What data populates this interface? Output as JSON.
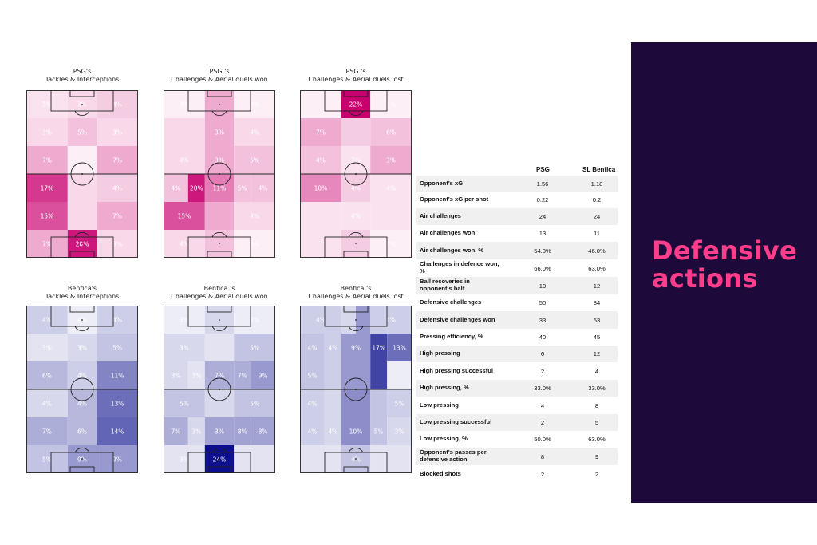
{
  "pitches": [
    {
      "id": "psg-tackles",
      "title": [
        "PSG's",
        "Tackles & Interceptions"
      ],
      "palette": "pink",
      "cells": [
        [
          2,
          3,
          4
        ],
        [
          3,
          5,
          3
        ],
        [
          7,
          1,
          7
        ],
        [
          17,
          3,
          4
        ],
        [
          15,
          3,
          7
        ],
        [
          7,
          20,
          3
        ]
      ],
      "labels": [
        [
          "5%",
          "3%",
          "4%"
        ],
        [
          "3%",
          "5%",
          "3%"
        ],
        [
          "7%",
          "",
          "7%"
        ],
        [
          "17%",
          "",
          "4%"
        ],
        [
          "15%",
          "",
          "7%"
        ],
        [
          "7%",
          "20%",
          "3%"
        ]
      ],
      "extra": [
        {
          "text": "3%",
          "col": 1.5,
          "row": 1,
          "dark": false
        }
      ]
    },
    {
      "id": "psg-aerial-won",
      "title": [
        "PSG 's",
        "Challenges & Aerial duels won"
      ],
      "palette": "pink",
      "cells": [
        [
          1,
          7,
          1
        ],
        [
          3,
          7,
          3
        ],
        [
          3,
          7,
          5
        ],
        [
          5,
          20,
          11,
          5,
          5
        ],
        [
          15,
          7,
          3
        ],
        [
          3,
          5,
          1
        ]
      ],
      "split": [
        null,
        null,
        null,
        true,
        null,
        null
      ],
      "labels": [
        [
          "3%",
          "",
          "3%"
        ],
        [
          "",
          "3%",
          "4%"
        ],
        [
          "4%",
          "3%",
          "5%"
        ],
        [
          "4%",
          "20%",
          "11%",
          "5%",
          "4%"
        ],
        [
          "15%",
          "",
          "4%"
        ],
        [
          "4%",
          "",
          "3%"
        ]
      ]
    },
    {
      "id": "psg-aerial-lost",
      "title": [
        "PSG 's",
        "Challenges & Aerial duels lost"
      ],
      "palette": "pink",
      "cells": [
        [
          1,
          22,
          1
        ],
        [
          7,
          4,
          5
        ],
        [
          5,
          2,
          7
        ],
        [
          10,
          4,
          2
        ],
        [
          2,
          2,
          2
        ],
        [
          2,
          4,
          1
        ]
      ],
      "labels": [
        [
          "",
          "22%",
          "1%"
        ],
        [
          "7%",
          "",
          "6%"
        ],
        [
          "4%",
          "7%",
          "3%"
        ],
        [
          "10%",
          "4%",
          "4%"
        ],
        [
          "",
          "4%",
          ""
        ],
        [
          "",
          "",
          "3%"
        ]
      ],
      "extra": [
        {
          "text": "7%",
          "col": 0.75,
          "row": 1.4
        },
        {
          "text": "5%",
          "col": 1.5,
          "row": 1.4
        }
      ]
    },
    {
      "id": "benfica-tackles",
      "title": [
        "Benfica's",
        "Tackles & Interceptions"
      ],
      "palette": "blue",
      "cells": [
        [
          4,
          1,
          4
        ],
        [
          2,
          3,
          5
        ],
        [
          6,
          4,
          11
        ],
        [
          3,
          6,
          13
        ],
        [
          7,
          6,
          14
        ],
        [
          5,
          9,
          9
        ]
      ],
      "labels": [
        [
          "4%",
          "4%",
          "4%"
        ],
        [
          "3%",
          "3%",
          "5%"
        ],
        [
          "6%",
          "4%",
          "11%"
        ],
        [
          "4%",
          "4%",
          "13%"
        ],
        [
          "7%",
          "6%",
          "14%"
        ],
        [
          "5%",
          "9%",
          "9%"
        ]
      ]
    },
    {
      "id": "benfica-aerial-won",
      "title": [
        "Benfica 's",
        "Challenges & Aerial duels won"
      ],
      "palette": "blue",
      "cells": [
        [
          1,
          3,
          1
        ],
        [
          3,
          2,
          5
        ],
        [
          3,
          2,
          7,
          7,
          9
        ],
        [
          5,
          3,
          5
        ],
        [
          7,
          3,
          8,
          8,
          8
        ],
        [
          2,
          24,
          2
        ]
      ],
      "split": [
        null,
        null,
        true,
        null,
        true,
        null
      ],
      "labels": [
        [
          "3%",
          "",
          "3%"
        ],
        [
          "3%",
          "",
          "5%"
        ],
        [
          "3%",
          "3%",
          "7%",
          "7%",
          "9%"
        ],
        [
          "5%",
          "",
          "5%"
        ],
        [
          "7%",
          "3%",
          "3%",
          "8%",
          "8%"
        ],
        [
          "3%",
          "24%",
          ""
        ]
      ]
    },
    {
      "id": "benfica-aerial-lost",
      "title": [
        "Benfica 's",
        "Challenges & Aerial duels lost"
      ],
      "palette": "blue",
      "cells": [
        [
          4,
          3,
          9,
          4
        ],
        [
          5,
          4,
          9,
          17,
          13
        ],
        [
          5,
          4,
          9,
          17,
          1
        ],
        [
          4,
          3,
          10,
          5,
          4
        ],
        [
          4,
          3,
          10,
          5,
          3
        ],
        [
          2,
          5,
          2
        ]
      ],
      "split": [
        true,
        true,
        true,
        true,
        true,
        null
      ],
      "labels": [
        [
          "4%",
          "",
          "",
          "4%"
        ],
        [
          "4%",
          "4%",
          "9%",
          "17%",
          "13%"
        ],
        [
          "5%",
          "",
          "",
          "",
          ""
        ],
        [
          "4%",
          "",
          "",
          "",
          "5%"
        ],
        [
          "4%",
          "4%",
          "10%",
          "5%",
          "3%"
        ],
        [
          "",
          "4%",
          ""
        ]
      ]
    }
  ],
  "stats": {
    "col1": "PSG",
    "col2": "SL Benfica",
    "rows": [
      {
        "label": "Opponent's xG",
        "psg": "1.56",
        "benfica": "1.18"
      },
      {
        "label": "Opponent's xG per shot",
        "psg": "0.22",
        "benfica": "0.2"
      },
      {
        "label": "Air challenges",
        "psg": "24",
        "benfica": "24"
      },
      {
        "label": "Air challenges won",
        "psg": "13",
        "benfica": "11"
      },
      {
        "label": "Air challenges won, %",
        "psg": "54.0%",
        "benfica": "46.0%"
      },
      {
        "label": "Challenges in defence won, %",
        "psg": "66.0%",
        "benfica": "63.0%"
      },
      {
        "label": "Ball recoveries in opponent's half",
        "psg": "10",
        "benfica": "12"
      },
      {
        "label": "Defensive challenges",
        "psg": "50",
        "benfica": "84"
      },
      {
        "label": "Defensive challenges won",
        "psg": "33",
        "benfica": "53"
      },
      {
        "label": "Pressing efficiency, %",
        "psg": "40",
        "benfica": "45"
      },
      {
        "label": "High pressing",
        "psg": "6",
        "benfica": "12"
      },
      {
        "label": "High pressing successful",
        "psg": "2",
        "benfica": "4"
      },
      {
        "label": "High pressing, %",
        "psg": "33.0%",
        "benfica": "33.0%"
      },
      {
        "label": "Low pressing",
        "psg": "4",
        "benfica": "8"
      },
      {
        "label": "Low pressing successful",
        "psg": "2",
        "benfica": "5"
      },
      {
        "label": "Low pressing, %",
        "psg": "50.0%",
        "benfica": "63.0%"
      },
      {
        "label": "Opponent's passes per defensive action",
        "psg": "8",
        "benfica": "9"
      },
      {
        "label": "Blocked shots",
        "psg": "2",
        "benfica": "2"
      }
    ]
  },
  "side": {
    "title_line1": "Defensive",
    "title_line2": "actions"
  },
  "colors": {
    "pink_max": "#c8006f",
    "blue_max": "#0d0f8c",
    "panel": "#1d0a3a",
    "accent": "#ff3d8b"
  },
  "chart_data": [
    {
      "type": "heatmap",
      "title": "PSG's Tackles & Interceptions",
      "rows": 6,
      "cols": 3,
      "values": [
        [
          5,
          3,
          4
        ],
        [
          3,
          5,
          3
        ],
        [
          7,
          0,
          7
        ],
        [
          17,
          0,
          4
        ],
        [
          15,
          0,
          7
        ],
        [
          7,
          20,
          3
        ]
      ]
    },
    {
      "type": "heatmap",
      "title": "PSG 's Challenges & Aerial duels won",
      "rows": 6,
      "cols": 3,
      "values": [
        [
          3,
          0,
          3
        ],
        [
          0,
          3,
          4
        ],
        [
          4,
          3,
          5
        ],
        [
          4,
          20,
          11,
          5,
          4
        ],
        [
          15,
          0,
          4
        ],
        [
          4,
          0,
          3
        ]
      ]
    },
    {
      "type": "heatmap",
      "title": "PSG 's Challenges & Aerial duels lost",
      "rows": 6,
      "cols": 3,
      "values": [
        [
          0,
          22,
          1
        ],
        [
          7,
          7,
          5,
          6
        ],
        [
          4,
          7,
          3
        ],
        [
          10,
          4,
          4
        ],
        [
          0,
          4,
          0
        ],
        [
          0,
          0,
          3
        ]
      ]
    },
    {
      "type": "heatmap",
      "title": "Benfica's Tackles & Interceptions",
      "rows": 6,
      "cols": 3,
      "values": [
        [
          4,
          4,
          4
        ],
        [
          3,
          3,
          5
        ],
        [
          6,
          4,
          11
        ],
        [
          4,
          4,
          13
        ],
        [
          7,
          6,
          14
        ],
        [
          5,
          9,
          9
        ]
      ]
    },
    {
      "type": "heatmap",
      "title": "Benfica 's Challenges & Aerial duels won",
      "rows": 6,
      "cols": 3,
      "values": [
        [
          3,
          0,
          3
        ],
        [
          3,
          0,
          5
        ],
        [
          3,
          3,
          7,
          7,
          9
        ],
        [
          5,
          0,
          5
        ],
        [
          7,
          3,
          3,
          8,
          8
        ],
        [
          3,
          24,
          0
        ]
      ]
    },
    {
      "type": "heatmap",
      "title": "Benfica 's Challenges & Aerial duels lost",
      "rows": 6,
      "cols": 3,
      "values": [
        [
          4,
          0,
          0,
          4
        ],
        [
          4,
          4,
          9,
          17,
          13
        ],
        [
          5,
          0,
          0,
          0,
          0
        ],
        [
          4,
          0,
          0,
          0,
          5
        ],
        [
          4,
          4,
          10,
          5,
          3
        ],
        [
          0,
          4,
          0
        ]
      ]
    },
    {
      "type": "table",
      "columns": [
        "",
        "PSG",
        "SL Benfica"
      ]
    }
  ]
}
